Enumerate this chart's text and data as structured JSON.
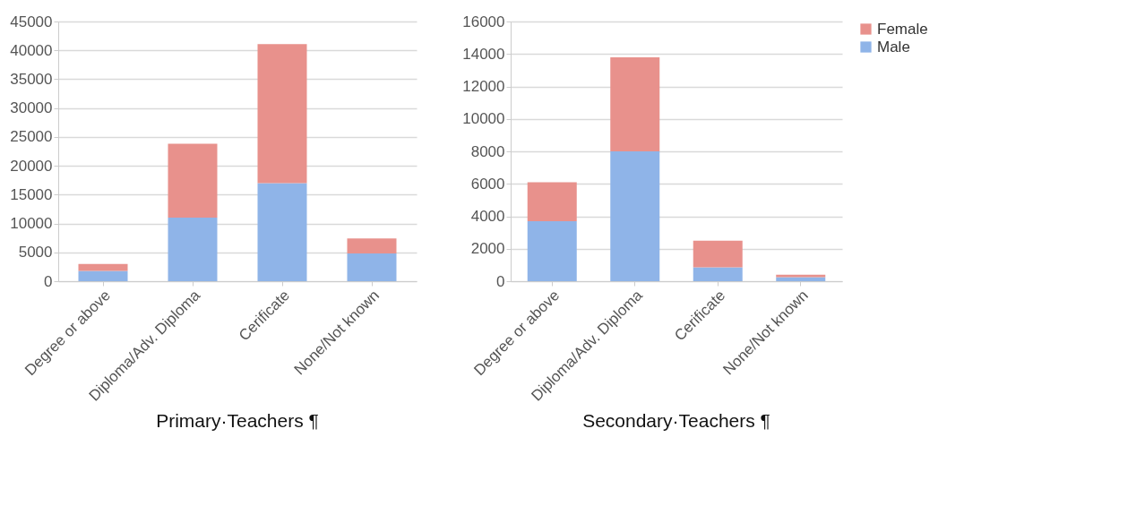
{
  "chart_data": [
    {
      "type": "bar",
      "title": "Primary·Teachers ¶",
      "stacked": true,
      "categories": [
        "Degree or above",
        "Diploma/Adv. Diploma",
        "Cerificate",
        "None/Not known"
      ],
      "series": [
        {
          "color": "#8fb4e8",
          "values": [
            1800,
            11000,
            17000,
            4800
          ]
        },
        {
          "color": "#e8918c",
          "values": [
            1200,
            12800,
            24100,
            2600
          ]
        }
      ],
      "ylim": [
        0,
        45000
      ],
      "yticks": [
        0,
        5000,
        10000,
        15000,
        20000,
        25000,
        30000,
        35000,
        40000,
        45000
      ],
      "grid": "y",
      "legend": false
    },
    {
      "type": "bar",
      "title": "Secondary·Teachers ¶",
      "stacked": true,
      "categories": [
        "Degree or above",
        "Diploma/Adv. Diploma",
        "Cerificate",
        "None/Not known"
      ],
      "series": [
        {
          "name": "Male",
          "color": "#8fb4e8",
          "values": [
            3700,
            8000,
            850,
            250
          ]
        },
        {
          "name": "Female",
          "color": "#e8918c",
          "values": [
            2400,
            5800,
            1650,
            150
          ]
        }
      ],
      "ylim": [
        0,
        16000
      ],
      "yticks": [
        0,
        2000,
        4000,
        6000,
        8000,
        10000,
        12000,
        14000,
        16000
      ],
      "grid": "y",
      "legend": "right"
    }
  ]
}
